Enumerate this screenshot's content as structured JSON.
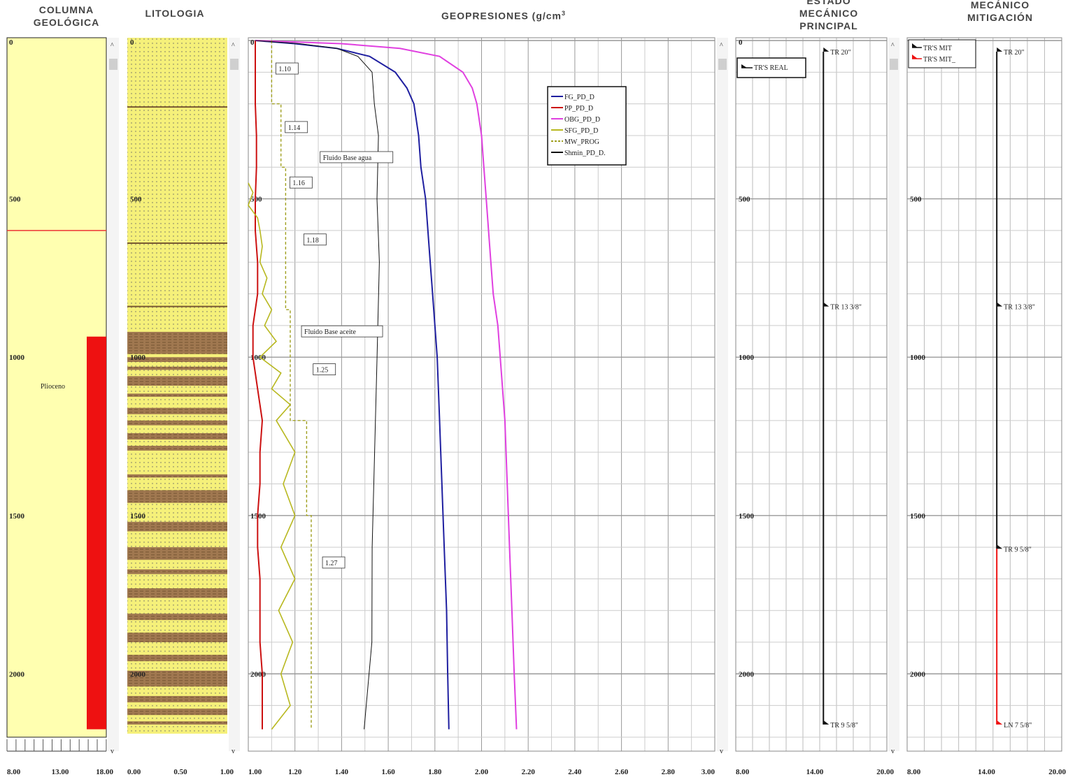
{
  "headers": {
    "columna": [
      "COLUMNA",
      "GEOLÓGICA"
    ],
    "litologia": "LITOLOGIA",
    "geopresiones": "GEOPRESIONES (g/cm",
    "geopresiones_sup": "3",
    "estado_principal": [
      "ESTADO",
      "MECÁNICO",
      "PRINCIPAL"
    ],
    "estado_mitigacion": [
      "MECÁNICO",
      "MITIGACIÓN"
    ]
  },
  "colors": {
    "fg": "#1f1fa0",
    "pp": "#cc1111",
    "obg": "#e040e0",
    "sfg": "#b8b820",
    "mw": "#a0a020",
    "shmin": "#111111",
    "litho_sand": "#f5f07a",
    "litho_shale": "#a07850",
    "geo_fill": "#ffffb0",
    "geo_bar": "#ee1111"
  },
  "depth": {
    "min": 0,
    "max": 2200,
    "ticks": [
      0,
      500,
      1000,
      1500,
      2000
    ],
    "tick_labels": [
      "0",
      "500",
      "1000",
      "1500",
      "2000"
    ]
  },
  "columna": {
    "x_ticks": [
      "8.00",
      "13.00",
      "18.00"
    ],
    "formation": "Plioceno",
    "marker_depth": 600,
    "bar": {
      "from": 935,
      "to": 2175
    }
  },
  "litologia": {
    "x_ticks": [
      "0.00",
      "0.50",
      "1.00"
    ],
    "shale_beds": [
      [
        920,
        990
      ],
      [
        1000,
        1015
      ],
      [
        1030,
        1040
      ],
      [
        1060,
        1090
      ],
      [
        1115,
        1125
      ],
      [
        1160,
        1180
      ],
      [
        1200,
        1215
      ],
      [
        1240,
        1260
      ],
      [
        1280,
        1295
      ],
      [
        1370,
        1380
      ],
      [
        1420,
        1460
      ],
      [
        1520,
        1550
      ],
      [
        1600,
        1640
      ],
      [
        1670,
        1685
      ],
      [
        1730,
        1760
      ],
      [
        1810,
        1830
      ],
      [
        1870,
        1900
      ],
      [
        1940,
        1960
      ],
      [
        1990,
        2040
      ],
      [
        2070,
        2090
      ],
      [
        2110,
        2130
      ],
      [
        2150,
        2160
      ]
    ],
    "contacts": [
      210,
      640,
      840
    ]
  },
  "chart_data": {
    "type": "line",
    "title": "GEOPRESIONES (g/cm3)",
    "xlabel": "",
    "ylabel": "",
    "xlim": [
      1.0,
      3.0
    ],
    "ylim": [
      0,
      2200
    ],
    "x_ticks": [
      "1.00",
      "1.20",
      "1.40",
      "1.60",
      "1.80",
      "2.00",
      "2.20",
      "2.40",
      "2.60",
      "2.80",
      "3.00"
    ],
    "legend_position": "top-right",
    "series": [
      {
        "name": "FG_PD_D",
        "depth": [
          0,
          10,
          25,
          50,
          100,
          150,
          200,
          300,
          400,
          500,
          600,
          700,
          800,
          900,
          1000,
          1200,
          1400,
          1600,
          1800,
          2000,
          2175
        ],
        "x": [
          1.03,
          1.2,
          1.38,
          1.52,
          1.63,
          1.68,
          1.71,
          1.73,
          1.74,
          1.76,
          1.77,
          1.78,
          1.79,
          1.8,
          1.81,
          1.82,
          1.83,
          1.84,
          1.85,
          1.855,
          1.86
        ]
      },
      {
        "name": "PP_PD_D",
        "depth": [
          0,
          100,
          200,
          300,
          400,
          500,
          600,
          700,
          800,
          900,
          1000,
          1100,
          1200,
          1300,
          1400,
          1500,
          1600,
          1700,
          1800,
          1900,
          2000,
          2175
        ],
        "x": [
          1.03,
          1.03,
          1.03,
          1.035,
          1.035,
          1.03,
          1.03,
          1.04,
          1.04,
          1.02,
          1.02,
          1.04,
          1.06,
          1.05,
          1.05,
          1.04,
          1.04,
          1.05,
          1.05,
          1.05,
          1.06,
          1.06
        ]
      },
      {
        "name": "OBG_PD_D",
        "depth": [
          0,
          10,
          25,
          50,
          100,
          150,
          200,
          300,
          400,
          500,
          600,
          700,
          800,
          900,
          1000,
          1200,
          1400,
          1600,
          1800,
          2000,
          2175
        ],
        "x": [
          1.03,
          1.4,
          1.65,
          1.82,
          1.92,
          1.96,
          1.98,
          2.0,
          2.01,
          2.02,
          2.03,
          2.04,
          2.05,
          2.07,
          2.08,
          2.1,
          2.11,
          2.12,
          2.13,
          2.14,
          2.15
        ]
      },
      {
        "name": "SFG_PD_D",
        "depth": [
          450,
          480,
          520,
          560,
          600,
          650,
          700,
          750,
          800,
          850,
          900,
          950,
          1000,
          1050,
          1100,
          1150,
          1200,
          1300,
          1400,
          1500,
          1600,
          1700,
          1800,
          1900,
          2000,
          2100,
          2175
        ],
        "x": [
          1.0,
          1.02,
          1.0,
          1.04,
          1.05,
          1.06,
          1.05,
          1.08,
          1.06,
          1.1,
          1.07,
          1.12,
          1.05,
          1.14,
          1.1,
          1.18,
          1.12,
          1.2,
          1.15,
          1.2,
          1.14,
          1.2,
          1.13,
          1.19,
          1.14,
          1.18,
          1.1
        ]
      },
      {
        "name": "MW_PROG",
        "depth": [
          0,
          200,
          200,
          400,
          400,
          850,
          850,
          1200,
          1200,
          1500,
          1500,
          2175
        ],
        "x": [
          1.1,
          1.1,
          1.14,
          1.14,
          1.16,
          1.16,
          1.18,
          1.18,
          1.25,
          1.25,
          1.27,
          1.27
        ]
      },
      {
        "name": "Shmin_PD_D.",
        "depth": [
          0,
          10,
          25,
          50,
          100,
          200,
          300,
          500,
          700,
          1000,
          1300,
          1600,
          1900,
          2175
        ],
        "x": [
          1.03,
          1.22,
          1.38,
          1.47,
          1.52,
          1.55,
          1.56,
          1.56,
          1.55,
          1.54,
          1.53,
          1.52,
          1.52,
          1.5
        ]
      }
    ],
    "annotations": [
      {
        "text": "1.10",
        "x": 1.13,
        "y": 95
      },
      {
        "text": "1.14",
        "x": 1.17,
        "y": 280
      },
      {
        "text": "1.16",
        "x": 1.19,
        "y": 455
      },
      {
        "text": "1.18",
        "x": 1.25,
        "y": 635
      },
      {
        "text": "Fluido Base agua",
        "x": 1.32,
        "y": 375
      },
      {
        "text": "Fluido Base aceite",
        "x": 1.24,
        "y": 925
      },
      {
        "text": "1.25",
        "x": 1.29,
        "y": 1045
      },
      {
        "text": "1.27",
        "x": 1.33,
        "y": 1655
      }
    ]
  },
  "estado_principal": {
    "x_ticks": [
      "8.00",
      "14.00",
      "20.00"
    ],
    "legend": "TR'S REAL",
    "casings": [
      {
        "label": "TR 20\"",
        "depth": 35
      },
      {
        "label": "TR 13 3/8\"",
        "depth": 840
      },
      {
        "label": "TR 9 5/8\"",
        "depth": 2160
      }
    ]
  },
  "estado_mitigacion": {
    "x_ticks": [
      "8.00",
      "14.00",
      "20.00"
    ],
    "legend": [
      "TR'S MIT",
      "TR'S MIT_"
    ],
    "casings": [
      {
        "label": "TR 20\"",
        "depth": 35
      },
      {
        "label": "TR 13 3/8\"",
        "depth": 840
      },
      {
        "label": "TR 9 5/8\"",
        "depth": 1605
      }
    ],
    "liner": {
      "label": "LN 7 5/8\"",
      "depth": 2160,
      "top": 1605
    }
  }
}
